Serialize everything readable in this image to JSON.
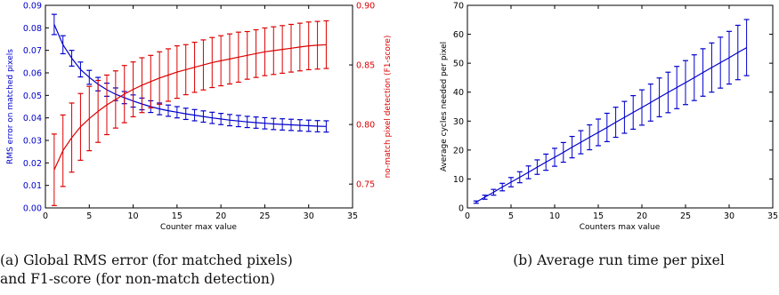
{
  "captions": {
    "a_line1": "(a) Global RMS error (for matched pixels)",
    "a_line2": "and F1-score (for non-match detection)",
    "b": "(b) Average run time per pixel"
  },
  "chart_data": [
    {
      "type": "line",
      "title": "",
      "xlabel": "Counter max value",
      "ylabel": "RMS error on matched pixels",
      "y2label": "no-match pixel detection (F1-score)",
      "xlim": [
        0,
        35
      ],
      "ylim": [
        0,
        0.09
      ],
      "y2lim": [
        0.73,
        0.9
      ],
      "xticks": [
        0,
        5,
        10,
        15,
        20,
        25,
        30,
        35
      ],
      "yticks": [
        0.0,
        0.01,
        0.02,
        0.03,
        0.04,
        0.05,
        0.06,
        0.07,
        0.08,
        0.09
      ],
      "y2ticks": [
        0.75,
        0.8,
        0.85,
        0.9
      ],
      "grid": false,
      "colors": {
        "rms": "#0000cc",
        "f1": "#dd0000"
      },
      "x": [
        1,
        2,
        3,
        4,
        5,
        6,
        7,
        8,
        9,
        10,
        11,
        12,
        13,
        14,
        15,
        16,
        17,
        18,
        19,
        20,
        21,
        22,
        23,
        24,
        25,
        26,
        27,
        28,
        29,
        30,
        31,
        32
      ],
      "series": [
        {
          "name": "",
          "axis": "left",
          "color": "#0000cc",
          "values": [
            0.0815,
            0.0725,
            0.0665,
            0.0615,
            0.058,
            0.055,
            0.0525,
            0.0505,
            0.049,
            0.0475,
            0.0462,
            0.045,
            0.044,
            0.0432,
            0.0425,
            0.0418,
            0.0412,
            0.0406,
            0.04,
            0.0395,
            0.039,
            0.0386,
            0.0382,
            0.0379,
            0.0376,
            0.0373,
            0.0371,
            0.0369,
            0.0367,
            0.0365,
            0.0363,
            0.0362
          ],
          "err": [
            0.0045,
            0.004,
            0.0035,
            0.0033,
            0.0031,
            0.003,
            0.0029,
            0.0028,
            0.0027,
            0.0027,
            0.0026,
            0.0026,
            0.0026,
            0.0025,
            0.0025,
            0.0025,
            0.0025,
            0.0025,
            0.0025,
            0.0025,
            0.0025,
            0.0025,
            0.0025,
            0.0025,
            0.0025,
            0.0025,
            0.0025,
            0.0025,
            0.0025,
            0.0025,
            0.0025,
            0.0025
          ]
        },
        {
          "name": "",
          "axis": "right",
          "color": "#dd0000",
          "values": [
            0.762,
            0.778,
            0.789,
            0.798,
            0.805,
            0.811,
            0.8165,
            0.821,
            0.8255,
            0.8295,
            0.833,
            0.836,
            0.839,
            0.8415,
            0.844,
            0.846,
            0.848,
            0.85,
            0.852,
            0.8535,
            0.855,
            0.8565,
            0.858,
            0.8595,
            0.861,
            0.862,
            0.863,
            0.864,
            0.865,
            0.866,
            0.8665,
            0.867
          ],
          "err": [
            0.03,
            0.03,
            0.029,
            0.028,
            0.027,
            0.026,
            0.025,
            0.024,
            0.024,
            0.023,
            0.023,
            0.022,
            0.022,
            0.022,
            0.022,
            0.021,
            0.021,
            0.021,
            0.021,
            0.021,
            0.021,
            0.021,
            0.02,
            0.02,
            0.02,
            0.02,
            0.02,
            0.02,
            0.02,
            0.02,
            0.02,
            0.02
          ]
        }
      ]
    },
    {
      "type": "line",
      "title": "",
      "xlabel": "Counters max value",
      "ylabel": "Average cycles needed per pixel",
      "xlim": [
        0,
        35
      ],
      "ylim": [
        0,
        70
      ],
      "xticks": [
        0,
        5,
        10,
        15,
        20,
        25,
        30,
        35
      ],
      "yticks": [
        0,
        10,
        20,
        30,
        40,
        50,
        60,
        70
      ],
      "grid": false,
      "colors": {
        "cycles": "#0000cc"
      },
      "x": [
        1,
        2,
        3,
        4,
        5,
        6,
        7,
        8,
        9,
        10,
        11,
        12,
        13,
        14,
        15,
        16,
        17,
        18,
        19,
        20,
        21,
        22,
        23,
        24,
        25,
        26,
        27,
        28,
        29,
        30,
        31,
        32
      ],
      "series": [
        {
          "name": "",
          "color": "#0000cc",
          "values": [
            2,
            3.7,
            5.4,
            7.2,
            8.9,
            10.6,
            12.3,
            14.1,
            15.8,
            17.5,
            19.2,
            21,
            22.7,
            24.4,
            26.1,
            27.8,
            29.6,
            31.3,
            33,
            34.7,
            36.4,
            38.2,
            39.9,
            41.6,
            43.3,
            45,
            46.8,
            48.5,
            50.2,
            51.9,
            53.7,
            55.4
          ],
          "err": [
            0.4,
            0.7,
            1,
            1.3,
            1.6,
            1.9,
            2.2,
            2.5,
            2.8,
            3.1,
            3.4,
            3.7,
            4,
            4.3,
            4.6,
            4.9,
            5.2,
            5.5,
            5.8,
            6.1,
            6.4,
            6.7,
            7,
            7.3,
            7.6,
            7.9,
            8.2,
            8.5,
            8.8,
            9.1,
            9.4,
            9.7
          ]
        }
      ]
    }
  ]
}
